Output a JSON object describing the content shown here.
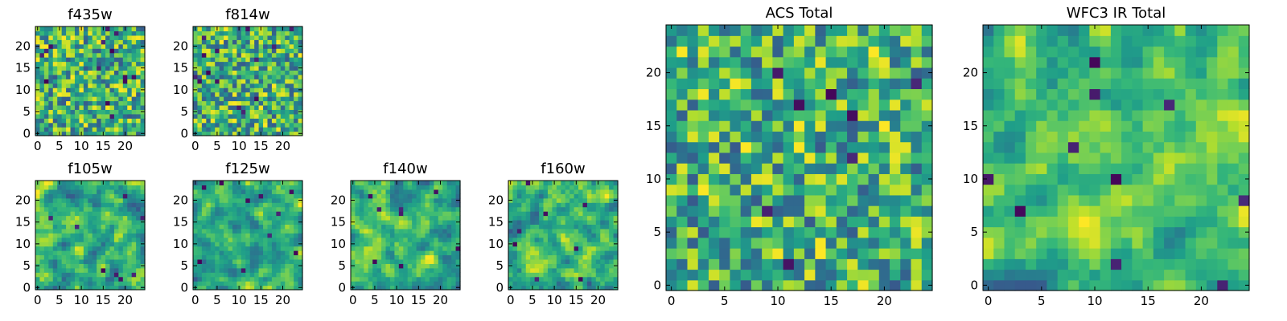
{
  "chart_data": [
    {
      "type": "heatmap",
      "title": "f435w",
      "xlim": [
        0,
        25
      ],
      "ylim": [
        0,
        25
      ],
      "xticks": [
        "0",
        "5",
        "10",
        "15",
        "20"
      ],
      "yticks": [
        "0",
        "5",
        "10",
        "15",
        "20"
      ],
      "seed": 11,
      "smoothing": 0,
      "dark_cells": 14,
      "colormap": "viridis"
    },
    {
      "type": "heatmap",
      "title": "f814w",
      "xlim": [
        0,
        25
      ],
      "ylim": [
        0,
        25
      ],
      "xticks": [
        "0",
        "5",
        "10",
        "15",
        "20"
      ],
      "yticks": [
        "0",
        "5",
        "10",
        "15",
        "20"
      ],
      "seed": 23,
      "smoothing": 0,
      "dark_cells": 14,
      "colormap": "viridis"
    },
    {
      "type": "heatmap",
      "title": "f105w",
      "xlim": [
        0,
        25
      ],
      "ylim": [
        0,
        25
      ],
      "xticks": [
        "0",
        "5",
        "10",
        "15",
        "20"
      ],
      "yticks": [
        "0",
        "5",
        "10",
        "15",
        "20"
      ],
      "seed": 37,
      "smoothing": 1,
      "dark_cells": 8,
      "colormap": "viridis"
    },
    {
      "type": "heatmap",
      "title": "f125w",
      "xlim": [
        0,
        25
      ],
      "ylim": [
        0,
        25
      ],
      "xticks": [
        "0",
        "5",
        "10",
        "15",
        "20"
      ],
      "yticks": [
        "0",
        "5",
        "10",
        "15",
        "20"
      ],
      "seed": 41,
      "smoothing": 1,
      "dark_cells": 10,
      "colormap": "viridis"
    },
    {
      "type": "heatmap",
      "title": "f140w",
      "xlim": [
        0,
        25
      ],
      "ylim": [
        0,
        25
      ],
      "xticks": [
        "0",
        "5",
        "10",
        "15",
        "20"
      ],
      "yticks": [
        "0",
        "5",
        "10",
        "15",
        "20"
      ],
      "seed": 53,
      "smoothing": 1,
      "dark_cells": 8,
      "colormap": "viridis"
    },
    {
      "type": "heatmap",
      "title": "f160w",
      "xlim": [
        0,
        25
      ],
      "ylim": [
        0,
        25
      ],
      "xticks": [
        "0",
        "5",
        "10",
        "15",
        "20"
      ],
      "yticks": [
        "0",
        "5",
        "10",
        "15",
        "20"
      ],
      "seed": 67,
      "smoothing": 1,
      "dark_cells": 8,
      "colormap": "viridis"
    },
    {
      "type": "heatmap",
      "title": "ACS Total",
      "xlim": [
        0,
        25
      ],
      "ylim": [
        0,
        25
      ],
      "xticks": [
        "0",
        "5",
        "10",
        "15",
        "20"
      ],
      "yticks": [
        "0",
        "5",
        "10",
        "15",
        "20"
      ],
      "seed": 79,
      "smoothing": 0,
      "dark_cells": 8,
      "colormap": "viridis"
    },
    {
      "type": "heatmap",
      "title": "WFC3 IR Total",
      "xlim": [
        0,
        25
      ],
      "ylim": [
        0,
        25
      ],
      "xticks": [
        "0",
        "5",
        "10",
        "15",
        "20"
      ],
      "yticks": [
        "0",
        "5",
        "10",
        "15",
        "20"
      ],
      "seed": 97,
      "smoothing": 1,
      "dark_cells": 10,
      "colormap": "viridis"
    }
  ]
}
